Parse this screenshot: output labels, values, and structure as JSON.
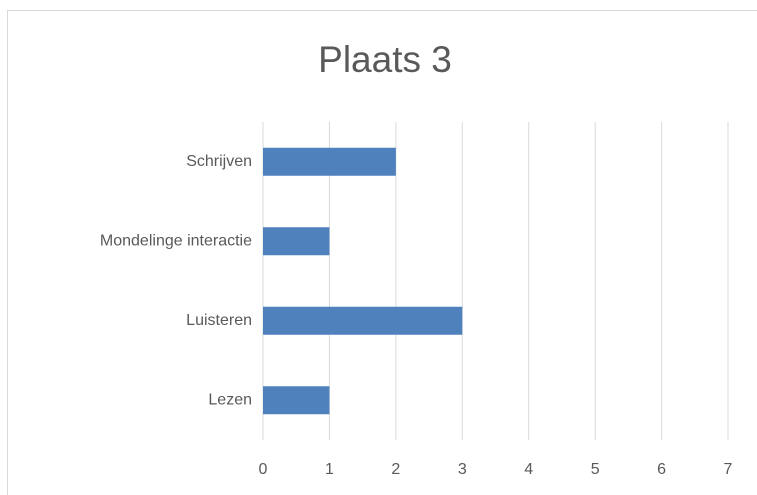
{
  "chart_data": {
    "type": "barh",
    "title": "Plaats 3",
    "categories": [
      "Schrijven",
      "Mondelinge interactie",
      "Luisteren",
      "Lezen"
    ],
    "values": [
      2,
      1,
      3,
      1
    ],
    "color": "#4f81bd",
    "xlim": [
      0,
      7
    ],
    "xticks": [
      0,
      1,
      2,
      3,
      4,
      5,
      6,
      7
    ],
    "grid": true
  }
}
